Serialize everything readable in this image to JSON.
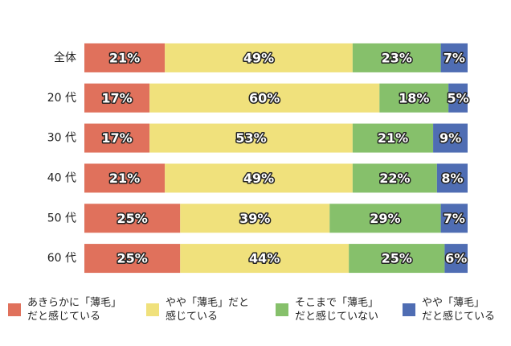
{
  "chart_data": {
    "type": "stacked-bar-horizontal",
    "categories": [
      "全体",
      "20 代",
      "30 代",
      "40 代",
      "50 代",
      "60 代"
    ],
    "xlim": [
      0,
      100
    ],
    "series": [
      {
        "name": "あきらかに「薄毛」\nだと感じている",
        "color": "#e0715c",
        "values": [
          21,
          17,
          17,
          21,
          25,
          25
        ],
        "value_labels": [
          "21%",
          "17%",
          "17%",
          "21%",
          "25%",
          "25%"
        ]
      },
      {
        "name": "やや「薄毛」だと\n感じている",
        "color": "#f0e17c",
        "values": [
          49,
          60,
          53,
          49,
          39,
          44
        ],
        "value_labels": [
          "49%",
          "60%",
          "53%",
          "49%",
          "39%",
          "44%"
        ]
      },
      {
        "name": "そこまで「薄毛」\nだと感じていない",
        "color": "#86c06b",
        "values": [
          23,
          18,
          21,
          22,
          29,
          25
        ],
        "value_labels": [
          "23%",
          "18%",
          "21%",
          "22%",
          "29%",
          "25%"
        ]
      },
      {
        "name": "やや「薄毛」\nだと感じている",
        "color": "#4f6db3",
        "values": [
          7,
          5,
          9,
          8,
          7,
          6
        ],
        "value_labels": [
          "7%",
          "5%",
          "9%",
          "8%",
          "7%",
          "6%"
        ]
      }
    ]
  }
}
